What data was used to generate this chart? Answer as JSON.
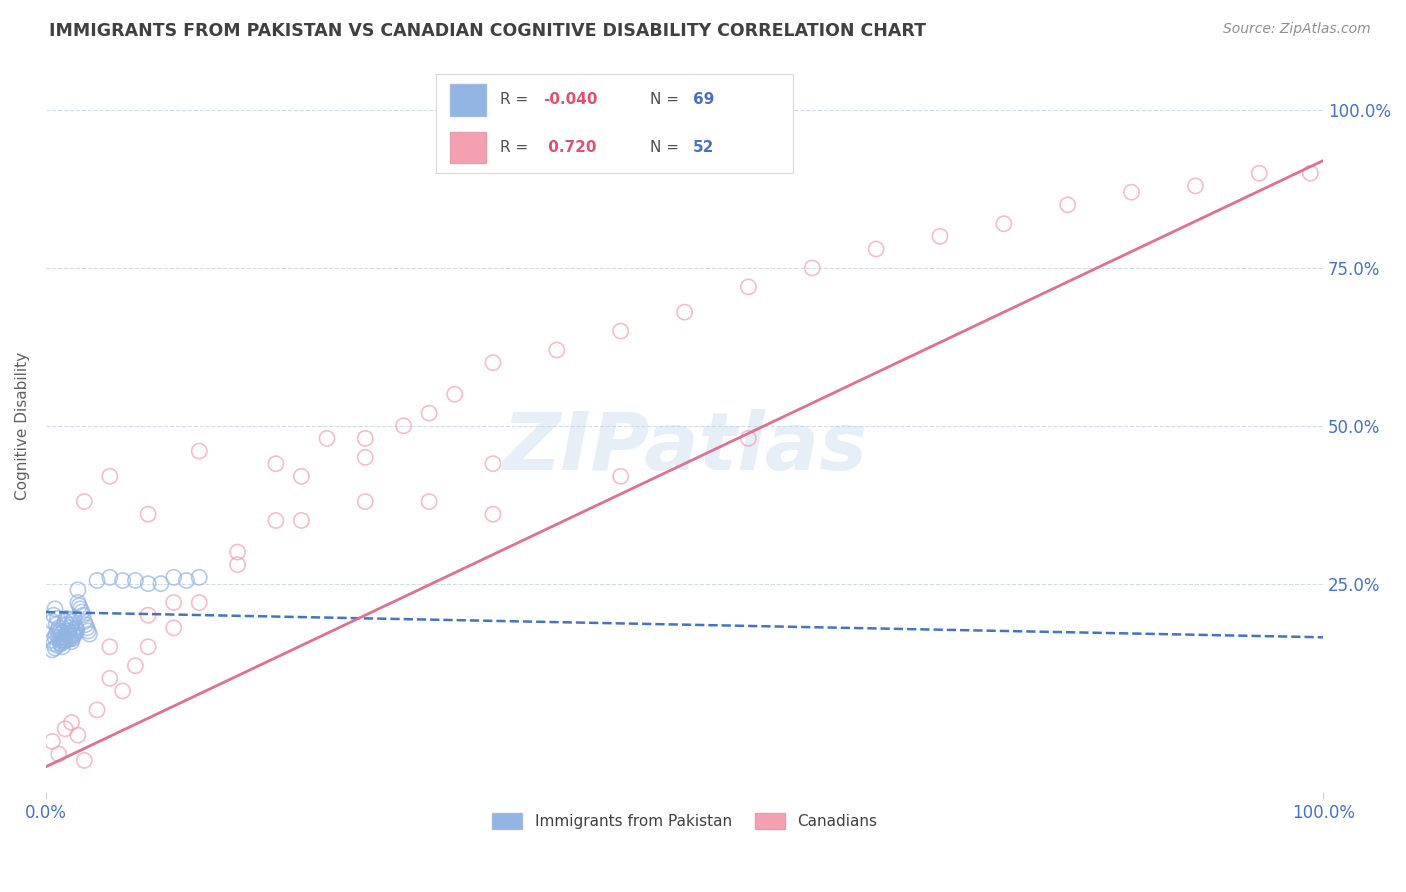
{
  "title": "IMMIGRANTS FROM PAKISTAN VS CANADIAN COGNITIVE DISABILITY CORRELATION CHART",
  "source": "Source: ZipAtlas.com",
  "ylabel": "Cognitive Disability",
  "watermark": "ZIPatlas",
  "legend_blue_r": "-0.040",
  "legend_blue_n": "69",
  "legend_pink_r": "0.720",
  "legend_pink_n": "52",
  "legend_label_blue": "Immigrants from Pakistan",
  "legend_label_pink": "Canadians",
  "blue_color": "#92b4e3",
  "pink_color": "#f4a0b0",
  "blue_line_color": "#4472c4",
  "pink_line_color": "#e07090",
  "axis_label_color": "#4472c4",
  "r_value_color": "#e05070",
  "title_color": "#404040",
  "background_color": "#ffffff",
  "grid_color": "#c8d8e8",
  "xlim": [
    0.0,
    1.0
  ],
  "ylim": [
    -0.08,
    1.08
  ],
  "blue_scatter_x": [
    0.005,
    0.006,
    0.007,
    0.008,
    0.009,
    0.01,
    0.011,
    0.012,
    0.013,
    0.014,
    0.015,
    0.016,
    0.017,
    0.018,
    0.019,
    0.02,
    0.021,
    0.022,
    0.023,
    0.024,
    0.025,
    0.026,
    0.027,
    0.028,
    0.029,
    0.03,
    0.031,
    0.032,
    0.033,
    0.034,
    0.005,
    0.006,
    0.007,
    0.008,
    0.009,
    0.01,
    0.011,
    0.012,
    0.013,
    0.014,
    0.015,
    0.016,
    0.017,
    0.018,
    0.019,
    0.02,
    0.021,
    0.022,
    0.023,
    0.024,
    0.025,
    0.04,
    0.05,
    0.06,
    0.07,
    0.08,
    0.09,
    0.1,
    0.11,
    0.12,
    0.005,
    0.007,
    0.009,
    0.011,
    0.013,
    0.015,
    0.017,
    0.019,
    0.021
  ],
  "blue_scatter_y": [
    0.19,
    0.2,
    0.21,
    0.185,
    0.195,
    0.18,
    0.175,
    0.17,
    0.165,
    0.185,
    0.19,
    0.195,
    0.185,
    0.175,
    0.18,
    0.185,
    0.19,
    0.195,
    0.18,
    0.175,
    0.22,
    0.215,
    0.21,
    0.205,
    0.2,
    0.19,
    0.185,
    0.18,
    0.175,
    0.17,
    0.16,
    0.155,
    0.165,
    0.17,
    0.175,
    0.165,
    0.16,
    0.155,
    0.15,
    0.16,
    0.165,
    0.17,
    0.175,
    0.168,
    0.162,
    0.158,
    0.163,
    0.168,
    0.172,
    0.178,
    0.24,
    0.255,
    0.26,
    0.255,
    0.255,
    0.25,
    0.25,
    0.26,
    0.255,
    0.26,
    0.145,
    0.148,
    0.152,
    0.155,
    0.158,
    0.16,
    0.162,
    0.165,
    0.168
  ],
  "pink_scatter_x": [
    0.005,
    0.01,
    0.015,
    0.02,
    0.025,
    0.03,
    0.04,
    0.05,
    0.06,
    0.07,
    0.08,
    0.1,
    0.12,
    0.15,
    0.18,
    0.2,
    0.22,
    0.25,
    0.28,
    0.3,
    0.32,
    0.35,
    0.4,
    0.45,
    0.5,
    0.55,
    0.6,
    0.65,
    0.7,
    0.75,
    0.8,
    0.85,
    0.9,
    0.95,
    0.99,
    0.03,
    0.05,
    0.08,
    0.12,
    0.18,
    0.25,
    0.35,
    0.45,
    0.55,
    0.05,
    0.08,
    0.1,
    0.15,
    0.2,
    0.25,
    0.3,
    0.35
  ],
  "pink_scatter_y": [
    0.0,
    -0.02,
    0.02,
    0.03,
    0.01,
    -0.03,
    0.05,
    0.1,
    0.08,
    0.12,
    0.15,
    0.18,
    0.22,
    0.28,
    0.35,
    0.42,
    0.48,
    0.45,
    0.5,
    0.52,
    0.55,
    0.6,
    0.62,
    0.65,
    0.68,
    0.72,
    0.75,
    0.78,
    0.8,
    0.82,
    0.85,
    0.87,
    0.88,
    0.9,
    0.9,
    0.38,
    0.42,
    0.36,
    0.46,
    0.44,
    0.48,
    0.44,
    0.42,
    0.48,
    0.15,
    0.2,
    0.22,
    0.3,
    0.35,
    0.38,
    0.38,
    0.36
  ],
  "blue_trend_x": [
    0.0,
    1.0
  ],
  "blue_trend_y": [
    0.205,
    0.165
  ],
  "pink_trend_x": [
    0.0,
    1.0
  ],
  "pink_trend_y": [
    -0.04,
    0.92
  ],
  "xtick_labels": [
    "0.0%",
    "100.0%"
  ],
  "xtick_positions": [
    0.0,
    1.0
  ],
  "ytick_labels_right": [
    "100.0%",
    "75.0%",
    "50.0%",
    "25.0%"
  ],
  "ytick_positions_right": [
    1.0,
    0.75,
    0.5,
    0.25
  ],
  "dpi": 100,
  "figsize": [
    14.06,
    8.92
  ]
}
